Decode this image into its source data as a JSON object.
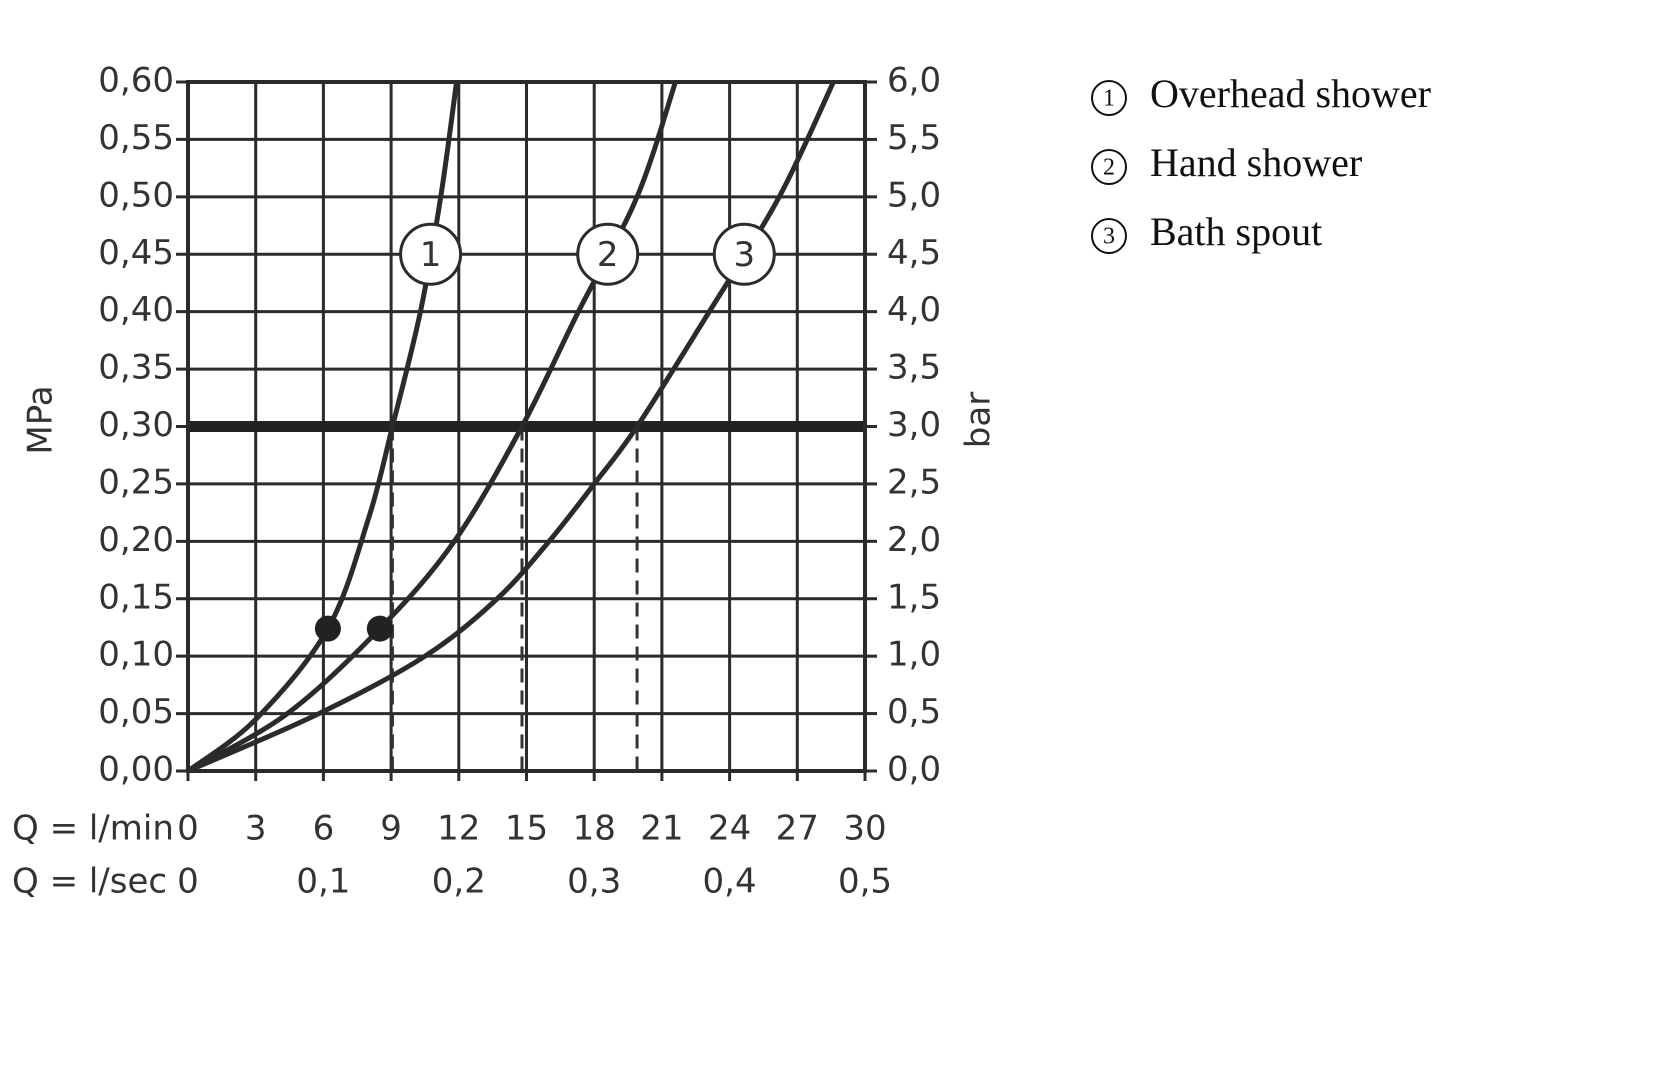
{
  "chart_data": {
    "type": "line",
    "x_label": "Q = l/min",
    "x2_label": "Q = l/sec",
    "y_label": "MPa",
    "y2_label": "bar",
    "xlim": [
      0,
      30
    ],
    "xticks": [
      0,
      3,
      6,
      9,
      12,
      15,
      18,
      21,
      24,
      27,
      30
    ],
    "x2lim": [
      0,
      0.5
    ],
    "x2ticks": [
      0,
      {
        "value": 0.1,
        "label": "0,1"
      },
      {
        "value": 0.2,
        "label": "0,2"
      },
      {
        "value": 0.3,
        "label": "0,3"
      },
      {
        "value": 0.4,
        "label": "0,4"
      },
      {
        "value": 0.5,
        "label": "0,5"
      }
    ],
    "ylim": [
      0,
      0.6
    ],
    "yticks": [
      {
        "value": 0,
        "label": "0,00"
      },
      {
        "value": 0.05,
        "label": "0,05"
      },
      {
        "value": 0.1,
        "label": "0,10"
      },
      {
        "value": 0.15,
        "label": "0,15"
      },
      {
        "value": 0.2,
        "label": "0,20"
      },
      {
        "value": 0.25,
        "label": "0,25"
      },
      {
        "value": 0.3,
        "label": "0,30"
      },
      {
        "value": 0.35,
        "label": "0,35"
      },
      {
        "value": 0.4,
        "label": "0,40"
      },
      {
        "value": 0.45,
        "label": "0,45"
      },
      {
        "value": 0.5,
        "label": "0,50"
      },
      {
        "value": 0.55,
        "label": "0,55"
      },
      {
        "value": 0.6,
        "label": "0,60"
      }
    ],
    "y2lim": [
      0,
      6
    ],
    "y2ticks": [
      {
        "value": 0,
        "label": "0,0"
      },
      {
        "value": 0.5,
        "label": "0,5"
      },
      {
        "value": 1,
        "label": "1,0"
      },
      {
        "value": 1.5,
        "label": "1,5"
      },
      {
        "value": 2,
        "label": "2,0"
      },
      {
        "value": 2.5,
        "label": "2,5"
      },
      {
        "value": 3,
        "label": "3,0"
      },
      {
        "value": 3.5,
        "label": "3,5"
      },
      {
        "value": 4,
        "label": "4,0"
      },
      {
        "value": 4.5,
        "label": "4,5"
      },
      {
        "value": 5,
        "label": "5,0"
      },
      {
        "value": 5.5,
        "label": "5,5"
      },
      {
        "value": 6,
        "label": "6,0"
      }
    ],
    "grid": true,
    "color": "#2b2b2b",
    "series": [
      {
        "name": "Overhead shower",
        "marker": "1",
        "color": "#2b2b2b",
        "x": [
          0,
          3,
          6.2,
          8,
          9.06,
          10.3,
          11.2,
          11.9
        ],
        "values": [
          0,
          0.045,
          0.124,
          0.22,
          0.3,
          0.4,
          0.5,
          0.6
        ]
      },
      {
        "name": "Hand shower",
        "marker": "2",
        "color": "#2b2b2b",
        "x": [
          0,
          4.4,
          8.5,
          11.8,
          14.8,
          17.3,
          19.9,
          21.6
        ],
        "values": [
          0,
          0.05,
          0.124,
          0.2,
          0.3,
          0.4,
          0.5,
          0.6
        ]
      },
      {
        "name": "Bath spout",
        "marker": "3",
        "color": "#2b2b2b",
        "x": [
          0,
          5.8,
          10.5,
          13.7,
          16,
          18,
          19.9,
          23.1,
          26.2,
          28.6
        ],
        "values": [
          0,
          0.05,
          0.1,
          0.15,
          0.2,
          0.25,
          0.3,
          0.4,
          0.5,
          0.6
        ]
      }
    ],
    "reference_line": 0.3,
    "drop_lines_x": [
      9.06,
      14.8,
      19.9
    ],
    "points": {
      "x": [
        6.2,
        8.5
      ],
      "values": [
        0.124,
        0.124
      ]
    }
  }
}
